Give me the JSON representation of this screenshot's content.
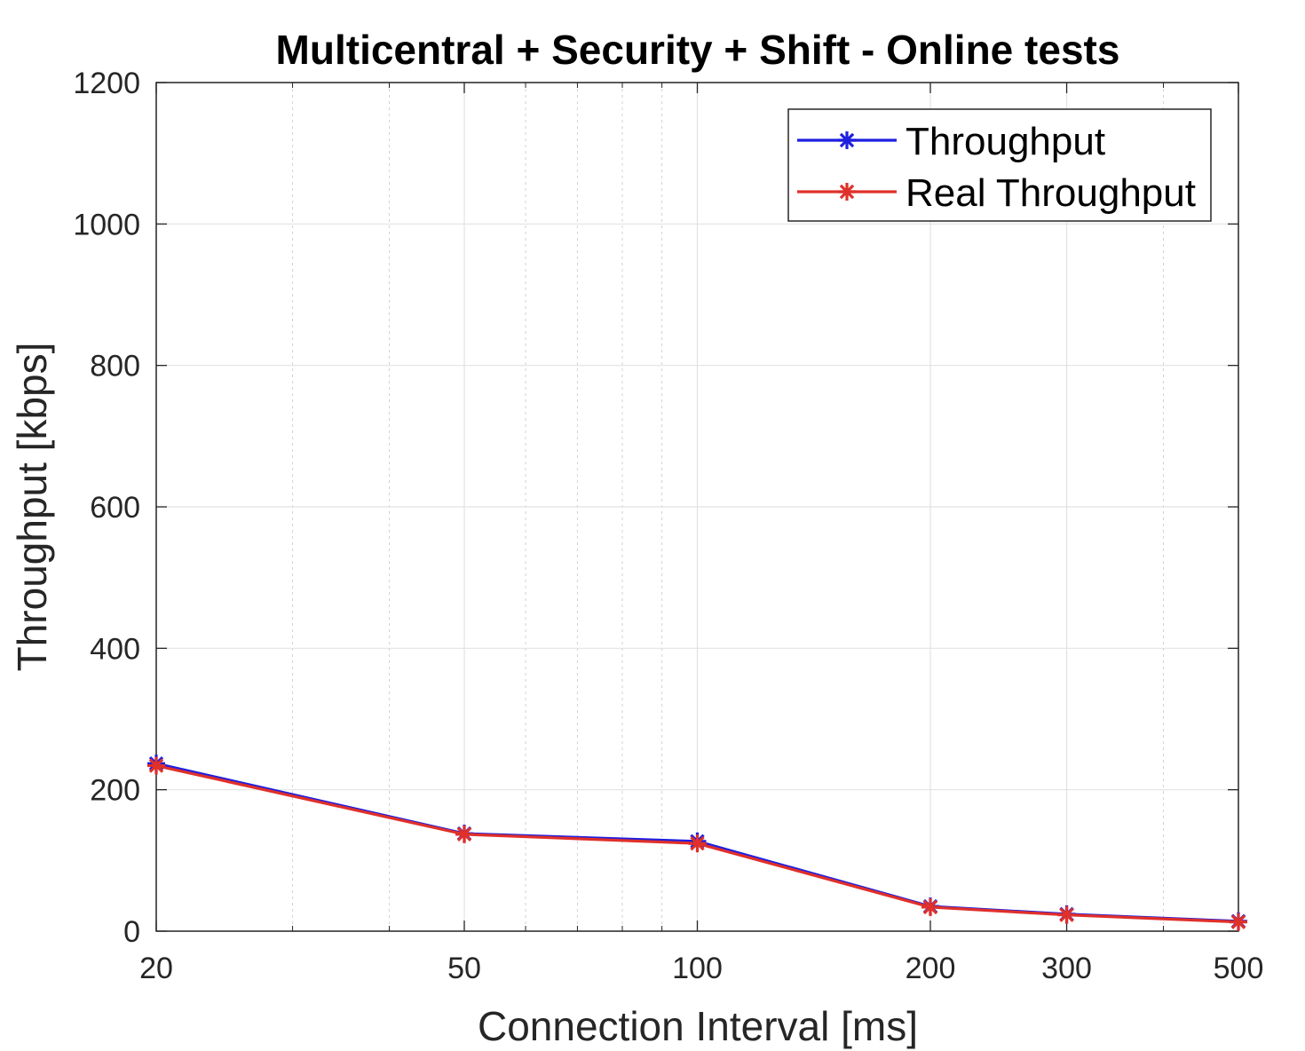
{
  "chart_data": {
    "type": "line",
    "title": "Multicentral + Security + Shift - Online tests",
    "xlabel": "Connection Interval [ms]",
    "ylabel": "Throughput [kbps]",
    "x_scale": "log",
    "xlim": [
      20,
      500
    ],
    "ylim": [
      0,
      1200
    ],
    "x_ticks": [
      20,
      50,
      100,
      200,
      300,
      500
    ],
    "x_tick_labels": [
      "20",
      "50",
      "100",
      "200",
      "300",
      "500"
    ],
    "y_ticks": [
      0,
      200,
      400,
      600,
      800,
      1000,
      1200
    ],
    "y_tick_labels": [
      "0",
      "200",
      "400",
      "600",
      "800",
      "1000",
      "1200"
    ],
    "x": [
      20,
      50,
      100,
      200,
      300,
      500
    ],
    "series": [
      {
        "name": "Throughput",
        "color": "#1f1fe0",
        "marker": "asterisk",
        "values": [
          237,
          138,
          127,
          35,
          24,
          14
        ]
      },
      {
        "name": "Real Throughput",
        "color": "#e0302a",
        "marker": "asterisk",
        "values": [
          234,
          137,
          124,
          34,
          23,
          13
        ]
      }
    ],
    "grid": true,
    "minor_grid": true,
    "legend_position": "top-right"
  }
}
